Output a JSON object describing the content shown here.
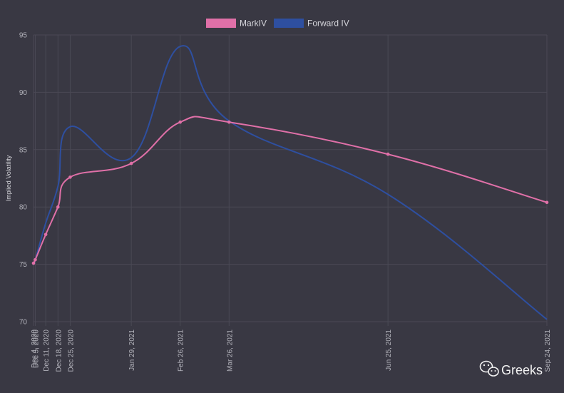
{
  "chart_data": {
    "type": "line",
    "ylabel": "Implied Volatility",
    "ylim": [
      70,
      95
    ],
    "yticks": [
      70,
      75,
      80,
      85,
      90,
      95
    ],
    "x": [
      "Dec 4, 2020",
      "Dec 5, 2020",
      "Dec 11, 2020",
      "Dec 18, 2020",
      "Dec 25, 2020",
      "Jan 29, 2021",
      "Feb 26, 2021",
      "Mar 26, 2021",
      "Jun 25, 2021",
      "Sep 24, 2021"
    ],
    "x_days": [
      0,
      1,
      7,
      14,
      21,
      56,
      84,
      112,
      203,
      294
    ],
    "legend_position": "top",
    "grid": true,
    "series": [
      {
        "name": "MarkIV",
        "color": "#e070a8",
        "values": [
          75.1,
          75.4,
          77.6,
          80.0,
          82.6,
          83.8,
          87.4,
          87.4,
          84.6,
          80.4
        ],
        "markers": true
      },
      {
        "name": "Forward IV",
        "color": "#2e4fa0",
        "values": [
          75.1,
          75.4,
          78.6,
          81.8,
          87.0,
          84.3,
          94.0,
          87.5,
          81.1,
          70.2
        ],
        "markers": false
      }
    ]
  },
  "watermark": {
    "text": "Greeks"
  }
}
